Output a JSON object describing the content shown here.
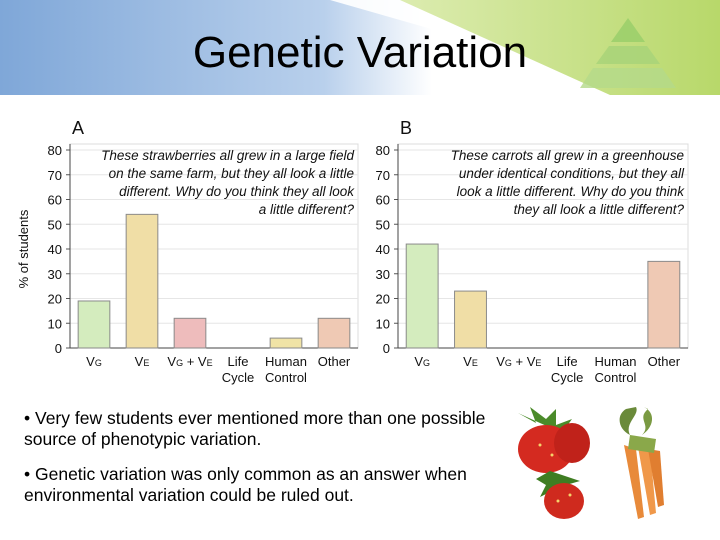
{
  "slide": {
    "title": "Genetic Variation",
    "bullets": [
      "• Very few students ever mentioned more than one possible source of phenotypic variation.",
      "• Genetic variation was only common as an answer when environmental variation could be ruled out."
    ],
    "colors": {
      "header_blue": "#7fa7d8",
      "header_green": "#b8d86a",
      "triangle_green": "#9ccf6b"
    }
  },
  "chart_data": [
    {
      "type": "bar",
      "panel": "A",
      "question": [
        "These strawberries all grew in a large field",
        "on the same farm, but they all look a little",
        "different. Why do you think they all look",
        "a little different?"
      ],
      "ylabel": "% of students",
      "ylim": [
        0,
        80
      ],
      "yticks": [
        0,
        10,
        20,
        30,
        40,
        50,
        60,
        70,
        80
      ],
      "categories": [
        {
          "l1": "VG",
          "l2": ""
        },
        {
          "l1": "VE",
          "l2": ""
        },
        {
          "l1": "VG + VE",
          "l2": ""
        },
        {
          "l1": "Life",
          "l2": "Cycle"
        },
        {
          "l1": "Human",
          "l2": "Control"
        },
        {
          "l1": "Other",
          "l2": ""
        }
      ],
      "values": [
        19,
        54,
        12,
        0,
        4,
        12
      ],
      "colors": [
        "#d4ecbe",
        "#f0dea6",
        "#eebcbc",
        "#ece2b0",
        "#f0e3a6",
        "#efc9b4"
      ]
    },
    {
      "type": "bar",
      "panel": "B",
      "question": [
        "These carrots all grew in a greenhouse",
        "under identical conditions, but they all",
        "look a little different. Why do you think",
        "they all look a little different?"
      ],
      "ylabel": "",
      "ylim": [
        0,
        80
      ],
      "yticks": [
        0,
        10,
        20,
        30,
        40,
        50,
        60,
        70,
        80
      ],
      "categories": [
        {
          "l1": "VG",
          "l2": ""
        },
        {
          "l1": "VE",
          "l2": ""
        },
        {
          "l1": "VG + VE",
          "l2": ""
        },
        {
          "l1": "Life",
          "l2": "Cycle"
        },
        {
          "l1": "Human",
          "l2": "Control"
        },
        {
          "l1": "Other",
          "l2": ""
        }
      ],
      "values": [
        42,
        23,
        0,
        0,
        0,
        35
      ],
      "colors": [
        "#d4ecbe",
        "#f0dea6",
        "#eebcbc",
        "#ece2b0",
        "#f0e3a6",
        "#efc9b4"
      ]
    }
  ]
}
